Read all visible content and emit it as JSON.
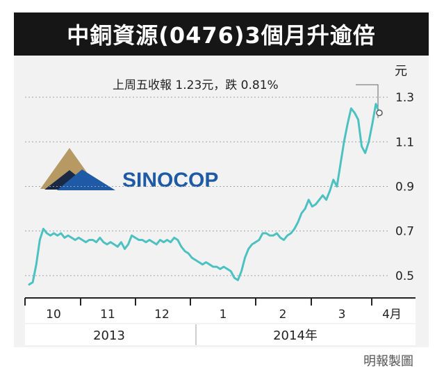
{
  "title": "中銅資源(0476)3個月升逾倍",
  "credit": "明報製圖",
  "colors": {
    "line": "#4cc1c1",
    "grid": "#9aa3aa",
    "title_bg": "#161616",
    "logo_blue": "#1f5aa6",
    "logo_dark": "#1a2a44",
    "logo_tan": "#b79a63"
  },
  "logo": {
    "text": "SINOCOP"
  },
  "annotation": {
    "text": "上周五收報 1.23元，跌 0.81%"
  },
  "chart_data": {
    "type": "line",
    "title": "中銅資源(0476)3個月升逾倍",
    "unit_label": "元",
    "ylim": [
      0.4,
      1.35
    ],
    "y_ticks": [
      {
        "value": 0.5,
        "label": "0.5"
      },
      {
        "value": 0.7,
        "label": "0.7"
      },
      {
        "value": 0.9,
        "label": "0.9"
      },
      {
        "value": 1.1,
        "label": "1.1"
      },
      {
        "value": 1.3,
        "label": "1.3"
      }
    ],
    "x_month_labels": [
      "10",
      "11",
      "12",
      "1",
      "2",
      "3",
      "4月"
    ],
    "x_year_labels": [
      "2013",
      "2014年"
    ],
    "grid": true,
    "series": [
      {
        "values": [
          0.46,
          0.47,
          0.55,
          0.66,
          0.71,
          0.69,
          0.68,
          0.69,
          0.68,
          0.69,
          0.67,
          0.68,
          0.67,
          0.66,
          0.67,
          0.66,
          0.65,
          0.66,
          0.66,
          0.65,
          0.67,
          0.65,
          0.64,
          0.65,
          0.64,
          0.63,
          0.65,
          0.62,
          0.64,
          0.68,
          0.67,
          0.66,
          0.66,
          0.65,
          0.66,
          0.65,
          0.64,
          0.66,
          0.65,
          0.66,
          0.65,
          0.67,
          0.66,
          0.63,
          0.61,
          0.6,
          0.58,
          0.57,
          0.56,
          0.55,
          0.56,
          0.55,
          0.54,
          0.54,
          0.53,
          0.54,
          0.53,
          0.52,
          0.49,
          0.48,
          0.52,
          0.58,
          0.62,
          0.64,
          0.65,
          0.66,
          0.69,
          0.69,
          0.68,
          0.68,
          0.69,
          0.67,
          0.66,
          0.68,
          0.69,
          0.71,
          0.74,
          0.78,
          0.8,
          0.84,
          0.81,
          0.82,
          0.84,
          0.86,
          0.84,
          0.88,
          0.93,
          0.9,
          1.0,
          1.1,
          1.18,
          1.25,
          1.23,
          1.2,
          1.08,
          1.05,
          1.1,
          1.18,
          1.27,
          1.23
        ]
      }
    ],
    "last_value": 1.23
  }
}
